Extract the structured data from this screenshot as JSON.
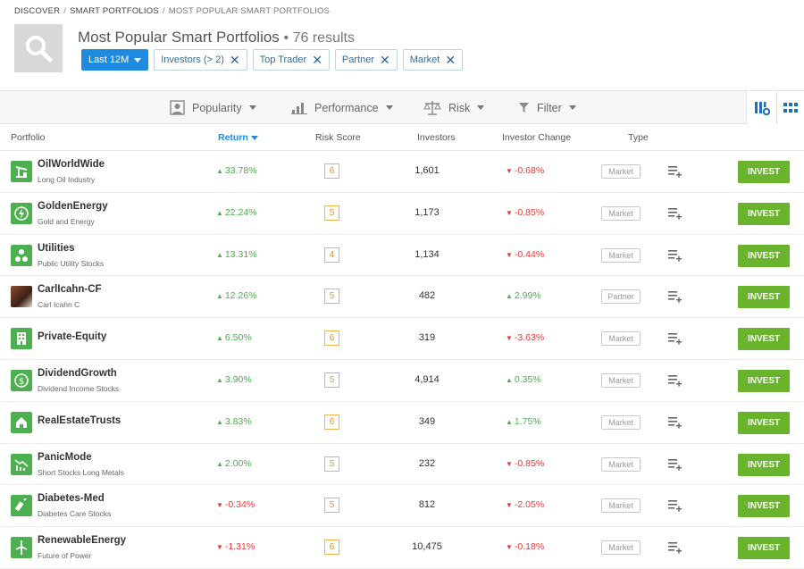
{
  "breadcrumb": {
    "items": [
      "DISCOVER",
      "SMART PORTFOLIOS",
      "MOST POPULAR SMART PORTFOLIOS"
    ]
  },
  "header": {
    "title": "Most Popular Smart Portfolios",
    "results": "• 76 results"
  },
  "filters": {
    "period": "Last 12M",
    "chips": [
      "Investors (> 2)",
      "Top Trader",
      "Partner",
      "Market"
    ]
  },
  "toolbar": {
    "popularity": "Popularity",
    "performance": "Performance",
    "risk": "Risk",
    "filter": "Filter"
  },
  "table": {
    "headers": {
      "portfolio": "Portfolio",
      "return": "Return",
      "risk": "Risk Score",
      "investors": "Investors",
      "change": "Investor Change",
      "type": "Type"
    },
    "invest_label": "INVEST",
    "rows": [
      {
        "name": "OilWorldWide",
        "sub": "Long Oil Industry",
        "ret": "33.78%",
        "ret_dir": "up",
        "risk": "6",
        "investors": "1,601",
        "chg": "-0.68%",
        "chg_dir": "down",
        "type": "Market",
        "icon": "oil-pump-icon"
      },
      {
        "name": "GoldenEnergy",
        "sub": "Gold and Energy",
        "ret": "22.24%",
        "ret_dir": "up",
        "risk": "5",
        "investors": "1,173",
        "chg": "-0.85%",
        "chg_dir": "down",
        "type": "Market",
        "icon": "lightning-icon"
      },
      {
        "name": "Utilities",
        "sub": "Public Utility Stocks",
        "ret": "13.31%",
        "ret_dir": "up",
        "risk": "4",
        "investors": "1,134",
        "chg": "-0.44%",
        "chg_dir": "down",
        "type": "Market",
        "icon": "utilities-icon"
      },
      {
        "name": "CarlIcahn-CF",
        "sub": "Carl Icahn C",
        "ret": "12.26%",
        "ret_dir": "up",
        "risk": "5",
        "investors": "482",
        "chg": "2.99%",
        "chg_dir": "up",
        "type": "Partner",
        "icon": "person-photo"
      },
      {
        "name": "Private-Equity",
        "sub": "",
        "ret": "6.50%",
        "ret_dir": "up",
        "risk": "6",
        "investors": "319",
        "chg": "-3.63%",
        "chg_dir": "down",
        "type": "Market",
        "icon": "building-icon"
      },
      {
        "name": "DividendGrowth",
        "sub": "Dividend Income Stocks",
        "ret": "3.90%",
        "ret_dir": "up",
        "risk": "5",
        "investors": "4,914",
        "chg": "0.35%",
        "chg_dir": "up",
        "type": "Market",
        "icon": "dividend-icon"
      },
      {
        "name": "RealEstateTrusts",
        "sub": "",
        "ret": "3.83%",
        "ret_dir": "up",
        "risk": "6",
        "investors": "349",
        "chg": "1.75%",
        "chg_dir": "up",
        "type": "Market",
        "icon": "house-icon"
      },
      {
        "name": "PanicMode",
        "sub": "Short Stocks Long Metals",
        "ret": "2.00%",
        "ret_dir": "up",
        "risk": "5",
        "investors": "232",
        "chg": "-0.85%",
        "chg_dir": "down",
        "type": "Market",
        "icon": "chart-down-icon"
      },
      {
        "name": "Diabetes-Med",
        "sub": "Diabetes Care Stocks",
        "ret": "-0.34%",
        "ret_dir": "down",
        "risk": "5",
        "investors": "812",
        "chg": "-2.05%",
        "chg_dir": "down",
        "type": "Market",
        "icon": "syringe-icon"
      },
      {
        "name": "RenewableEnergy",
        "sub": "Future of Power",
        "ret": "-1.31%",
        "ret_dir": "down",
        "risk": "6",
        "investors": "10,475",
        "chg": "-0.18%",
        "chg_dir": "down",
        "type": "Market",
        "icon": "wind-turbine-icon"
      }
    ]
  },
  "colors": {
    "accent": "#1f8be0",
    "positive": "#4caf50",
    "negative": "#e53935",
    "invest": "#6ab42d",
    "risk": "#f2b34a"
  }
}
